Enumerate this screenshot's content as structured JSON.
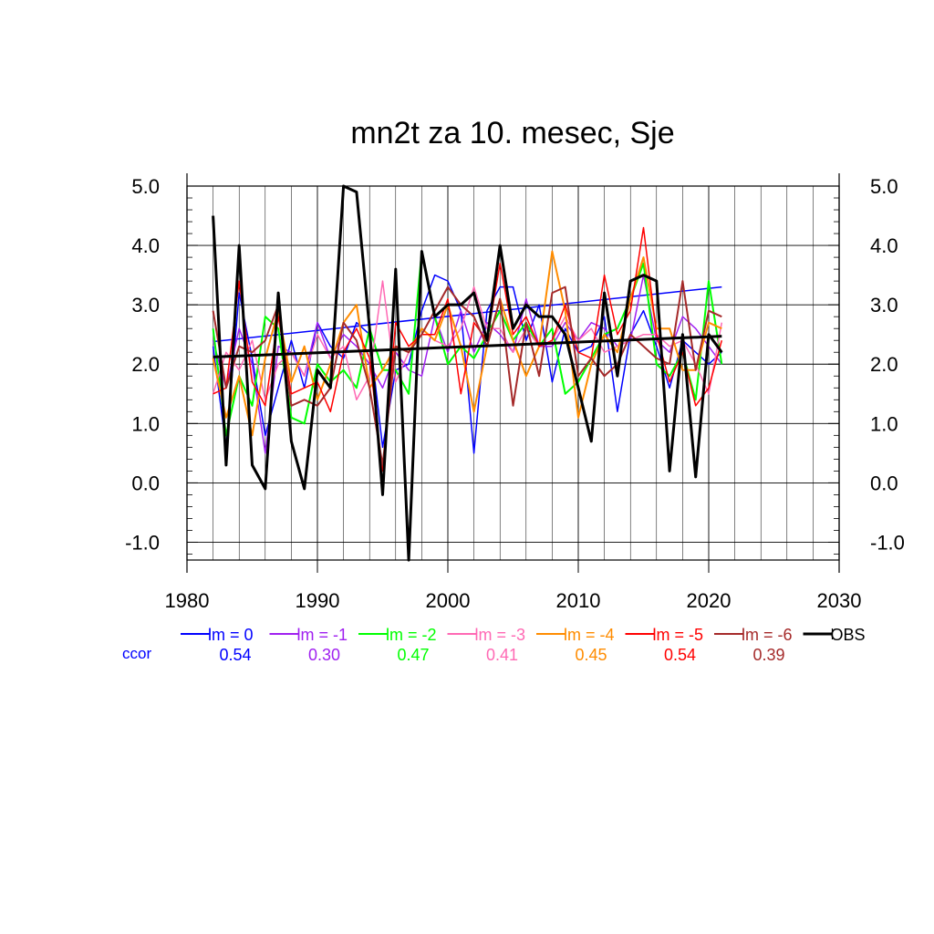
{
  "chart_data": {
    "type": "line",
    "title": "mn2t za 10. mesec, Sje",
    "xlabel": "",
    "ylabel": "",
    "xlim": [
      1980,
      2030
    ],
    "ylim": [
      -1.3,
      5.0
    ],
    "xticks": [
      1980,
      1990,
      2000,
      2010,
      2020,
      2030
    ],
    "yticks": [
      -1.0,
      0.0,
      1.0,
      2.0,
      3.0,
      4.0,
      5.0
    ],
    "xtick_labels": [
      "1980",
      "1990",
      "2000",
      "2010",
      "2020",
      "2030"
    ],
    "ytick_labels": [
      "-1.0",
      "0.0",
      "1.0",
      "2.0",
      "3.0",
      "4.0",
      "5.0"
    ],
    "grid": true,
    "legend_position": "bottom",
    "ccor_label": "ccor",
    "ccor_color": "#0000ff",
    "x": [
      1982,
      1983,
      1984,
      1985,
      1986,
      1987,
      1988,
      1989,
      1990,
      1991,
      1992,
      1993,
      1994,
      1995,
      1996,
      1997,
      1998,
      1999,
      2000,
      2001,
      2002,
      2003,
      2004,
      2005,
      2006,
      2007,
      2008,
      2009,
      2010,
      2011,
      2012,
      2013,
      2014,
      2015,
      2016,
      2017,
      2018,
      2019,
      2020,
      2021
    ],
    "series": [
      {
        "name": "lm = 0",
        "ccor": "0.54",
        "color": "#0000ff",
        "width": 1.5,
        "values": [
          2.3,
          0.6,
          3.2,
          2.1,
          0.8,
          1.6,
          2.4,
          1.6,
          2.7,
          2.3,
          2.1,
          2.7,
          2.5,
          0.6,
          1.9,
          2.0,
          2.9,
          3.5,
          3.4,
          2.9,
          0.5,
          2.9,
          3.3,
          3.3,
          2.4,
          3.0,
          1.7,
          2.6,
          2.2,
          2.3,
          2.8,
          1.2,
          2.5,
          2.9,
          2.3,
          1.6,
          2.4,
          2.2,
          2.0,
          2.2
        ],
        "trend": [
          2.38,
          3.3
        ]
      },
      {
        "name": "lm = -1",
        "ccor": "0.30",
        "color": "#a020f0",
        "width": 1.5,
        "values": [
          2.4,
          1.6,
          2.6,
          2.0,
          0.5,
          2.3,
          2.2,
          1.8,
          2.7,
          2.1,
          2.5,
          2.3,
          2.0,
          1.6,
          2.2,
          1.9,
          1.8,
          2.8,
          2.2,
          2.9,
          2.2,
          2.7,
          2.5,
          2.2,
          3.1,
          2.3,
          2.3,
          2.7,
          2.4,
          2.7,
          2.6,
          2.3,
          2.4,
          3.5,
          2.4,
          2.2,
          2.8,
          2.6,
          2.3,
          2.0
        ]
      },
      {
        "name": "lm = -2",
        "ccor": "0.47",
        "color": "#00ff00",
        "width": 2,
        "values": [
          2.6,
          0.8,
          1.8,
          1.3,
          2.8,
          2.6,
          1.1,
          1.0,
          2.0,
          1.7,
          1.9,
          1.6,
          2.6,
          1.9,
          1.9,
          1.5,
          3.9,
          2.8,
          2.0,
          2.3,
          2.1,
          2.5,
          2.9,
          2.4,
          2.7,
          2.3,
          2.6,
          1.5,
          1.7,
          2.1,
          2.5,
          2.6,
          3.1,
          3.7,
          2.0,
          1.8,
          2.2,
          1.4,
          3.4,
          2.0
        ]
      },
      {
        "name": "lm = -3",
        "ccor": "0.41",
        "color": "#ff69b4",
        "width": 1.5,
        "values": [
          1.5,
          2.2,
          1.9,
          2.4,
          1.4,
          2.0,
          2.2,
          1.8,
          2.5,
          2.1,
          2.3,
          1.4,
          1.8,
          3.4,
          1.7,
          2.2,
          2.6,
          2.4,
          2.3,
          2.6,
          3.3,
          2.6,
          2.6,
          2.2,
          2.6,
          2.3,
          2.4,
          2.8,
          2.4,
          2.6,
          2.2,
          2.3,
          2.4,
          2.5,
          2.5,
          2.3,
          2.4,
          2.0,
          1.5,
          2.7
        ]
      },
      {
        "name": "lm = -4",
        "ccor": "0.45",
        "color": "#ff8c00",
        "width": 2,
        "values": [
          2.1,
          1.1,
          1.8,
          0.8,
          2.1,
          2.9,
          1.7,
          2.3,
          1.4,
          2.0,
          2.7,
          3.0,
          1.6,
          1.9,
          2.3,
          2.2,
          2.6,
          2.4,
          3.0,
          2.3,
          1.2,
          2.3,
          3.1,
          2.4,
          1.8,
          2.3,
          3.9,
          2.9,
          1.1,
          2.0,
          2.5,
          2.2,
          3.1,
          3.8,
          2.6,
          2.6,
          1.9,
          1.9,
          2.7,
          2.6
        ]
      },
      {
        "name": "lm = -5",
        "ccor": "0.54",
        "color": "#ff0000",
        "width": 1.5,
        "values": [
          1.5,
          1.6,
          3.4,
          1.7,
          1.3,
          2.8,
          1.5,
          1.6,
          1.7,
          1.2,
          2.2,
          2.6,
          2.1,
          0.2,
          2.7,
          2.3,
          2.5,
          2.5,
          3.1,
          1.5,
          2.7,
          2.4,
          3.7,
          2.5,
          2.8,
          2.3,
          2.4,
          3.0,
          2.2,
          2.1,
          3.5,
          2.5,
          2.9,
          4.3,
          2.5,
          1.7,
          2.2,
          1.3,
          1.6,
          2.4
        ]
      },
      {
        "name": "lm = -6",
        "ccor": "0.39",
        "color": "#a52a2a",
        "width": 2,
        "values": [
          2.9,
          1.6,
          2.3,
          2.2,
          2.4,
          3.0,
          1.3,
          1.4,
          1.3,
          1.6,
          2.7,
          2.4,
          1.6,
          0.3,
          2.3,
          2.2,
          2.5,
          2.9,
          3.3,
          3.0,
          2.8,
          2.3,
          3.1,
          1.3,
          2.7,
          1.8,
          3.2,
          3.3,
          1.8,
          2.1,
          1.8,
          2.0,
          2.5,
          2.3,
          2.1,
          2.0,
          3.4,
          1.9,
          2.9,
          2.8
        ]
      },
      {
        "name": "OBS",
        "ccor": "",
        "color": "#000000",
        "width": 3,
        "values": [
          4.5,
          0.3,
          4.0,
          0.3,
          -0.1,
          3.2,
          0.7,
          -0.1,
          1.9,
          1.6,
          5.0,
          4.9,
          2.6,
          -0.2,
          3.6,
          -1.3,
          3.9,
          2.8,
          3.0,
          3.0,
          3.2,
          2.4,
          4.0,
          2.6,
          3.0,
          2.8,
          2.8,
          2.5,
          1.6,
          0.7,
          3.2,
          1.8,
          3.4,
          3.5,
          3.4,
          0.2,
          2.5,
          0.1,
          2.5,
          2.2
        ],
        "trend": [
          2.12,
          2.47
        ]
      }
    ]
  }
}
